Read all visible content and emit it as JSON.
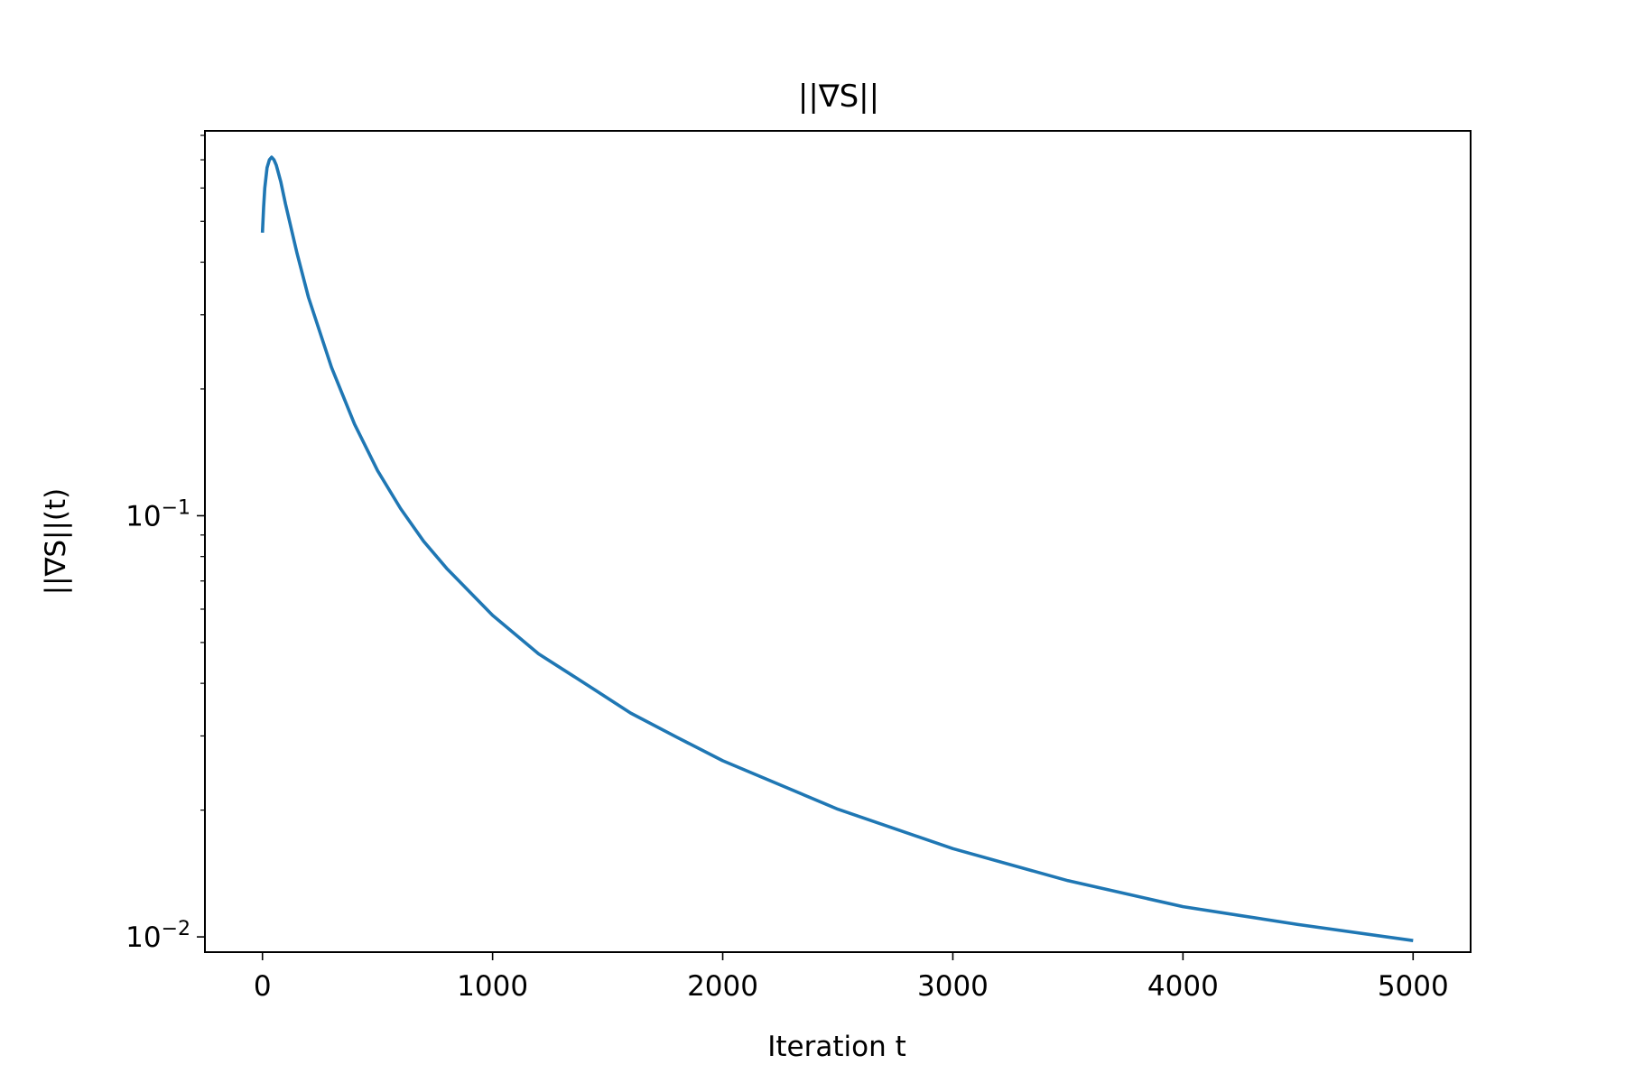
{
  "chart_data": {
    "type": "line",
    "title": "||∇S||",
    "xlabel": "Iteration t",
    "ylabel": "||∇S||(t)",
    "yscale": "log",
    "xlim": [
      -250,
      5250
    ],
    "ylim": [
      0.0092,
      0.82
    ],
    "grid": false,
    "legend": "none",
    "x_ticks": [
      {
        "value": 0,
        "label": "0"
      },
      {
        "value": 1000,
        "label": "1000"
      },
      {
        "value": 2000,
        "label": "2000"
      },
      {
        "value": 3000,
        "label": "3000"
      },
      {
        "value": 4000,
        "label": "4000"
      },
      {
        "value": 5000,
        "label": "5000"
      }
    ],
    "y_ticks": [
      {
        "value": 0.1,
        "base": "10",
        "exp": "−1"
      },
      {
        "value": 0.01,
        "base": "10",
        "exp": "−2"
      }
    ],
    "y_minor_ticks": [
      0.02,
      0.03,
      0.04,
      0.05,
      0.06,
      0.07,
      0.08,
      0.09,
      0.2,
      0.3,
      0.4,
      0.5,
      0.6,
      0.7,
      0.8
    ],
    "series": [
      {
        "color": "#1f77b4",
        "x": [
          0,
          5,
          10,
          20,
          30,
          40,
          50,
          60,
          80,
          100,
          150,
          200,
          300,
          400,
          500,
          600,
          700,
          800,
          1000,
          1200,
          1400,
          1600,
          1800,
          2000,
          2500,
          3000,
          3500,
          4000,
          4500,
          5000
        ],
        "y": [
          0.47,
          0.54,
          0.6,
          0.67,
          0.7,
          0.71,
          0.7,
          0.68,
          0.62,
          0.55,
          0.42,
          0.33,
          0.225,
          0.165,
          0.128,
          0.104,
          0.087,
          0.075,
          0.058,
          0.047,
          0.04,
          0.034,
          0.0298,
          0.0262,
          0.0201,
          0.0162,
          0.0136,
          0.0118,
          0.0107,
          0.0098
        ]
      }
    ]
  }
}
